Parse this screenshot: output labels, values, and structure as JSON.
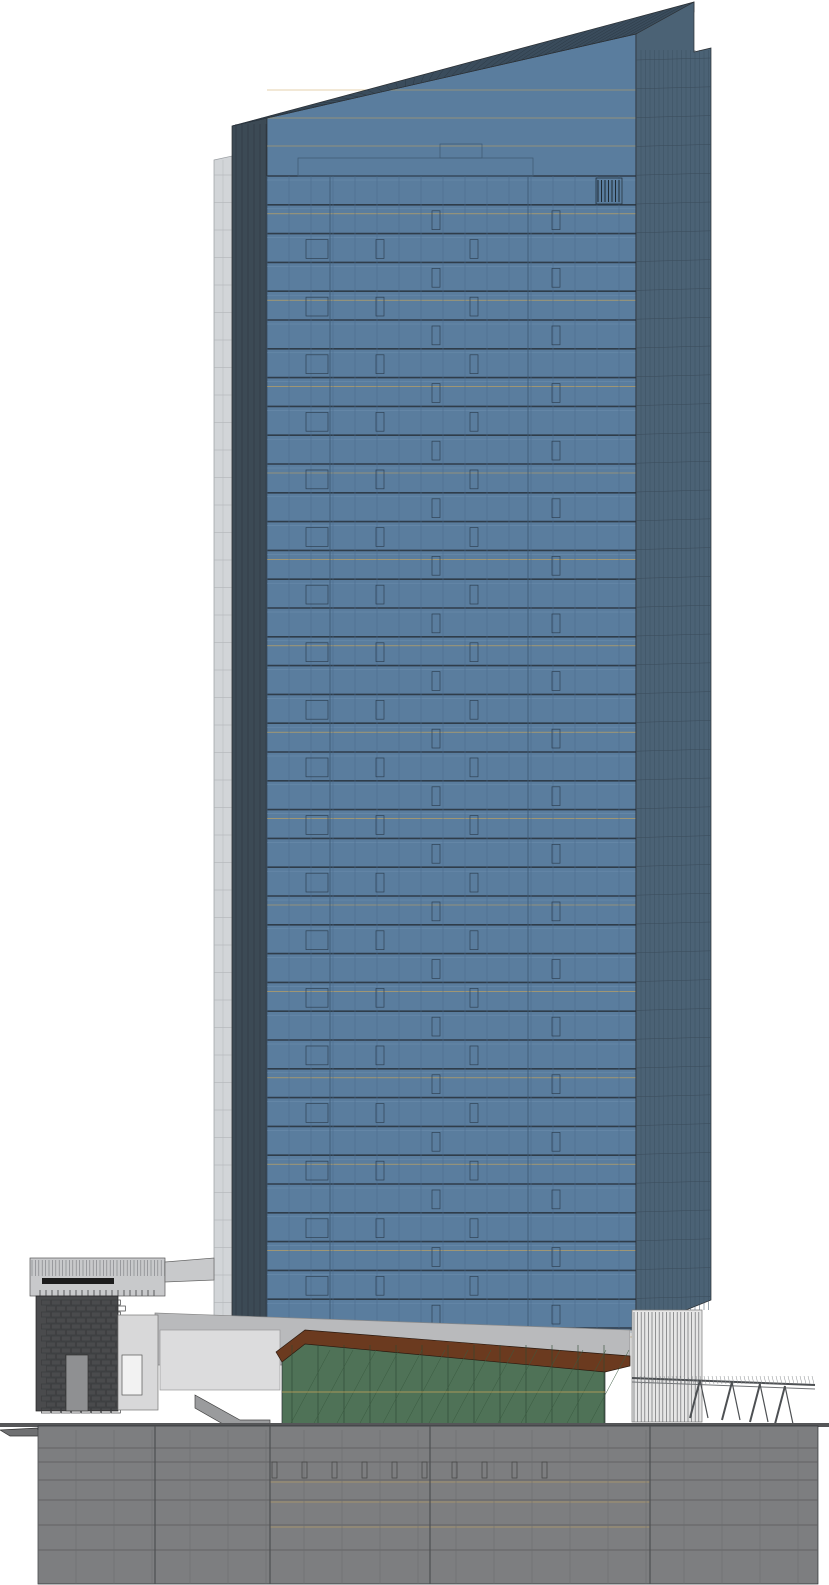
{
  "drawing": {
    "subject": "",
    "colors": {
      "background": "#ffffff",
      "curtain_wall": "#5a7d9e",
      "curtain_wall_dark": "#4a6a88",
      "side_facade": "#4b6275",
      "side_facade_dark": "#3a4c5c",
      "core_strip": "#3c4a55",
      "fin_light": "#d2d5d8",
      "spandrel": "#2f3d4a",
      "accent_line": "#c9a65a",
      "podium_glass": "#4f7257",
      "roof_trim": "#6b3a1f",
      "base_concrete": "#7d7e80",
      "base_concrete_dark": "#6a6b6d",
      "annex_stone": "#4a4b4d",
      "canopy": "#5b5e62",
      "light_grey": "#b9babc",
      "line": "#2b2f33"
    }
  }
}
